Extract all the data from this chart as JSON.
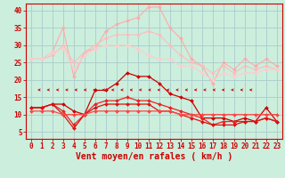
{
  "background_color": "#cceedd",
  "grid_color": "#aacccc",
  "xlabel": "Vent moyen/en rafales ( km/h )",
  "x_ticks": [
    0,
    1,
    2,
    3,
    4,
    5,
    6,
    7,
    8,
    9,
    10,
    11,
    12,
    13,
    14,
    15,
    16,
    17,
    18,
    19,
    20,
    21,
    22,
    23
  ],
  "ylim": [
    3,
    42
  ],
  "yticks": [
    5,
    10,
    15,
    20,
    25,
    30,
    35,
    40
  ],
  "series": [
    {
      "color": "#ffaaaa",
      "marker": "D",
      "markersize": 2,
      "linewidth": 0.8,
      "y": [
        26,
        26,
        28,
        35,
        21,
        28,
        29,
        34,
        36,
        37,
        38,
        41,
        41,
        35,
        32,
        26,
        24,
        19,
        25,
        23,
        26,
        24,
        26,
        24
      ]
    },
    {
      "color": "#ffbbbb",
      "marker": "D",
      "markersize": 2,
      "linewidth": 0.8,
      "y": [
        26,
        26,
        27,
        30,
        25,
        28,
        30,
        32,
        33,
        33,
        33,
        34,
        33,
        30,
        27,
        25,
        24,
        22,
        24,
        22,
        24,
        23,
        24,
        23
      ]
    },
    {
      "color": "#ffcccc",
      "marker": "D",
      "markersize": 2,
      "linewidth": 0.8,
      "y": [
        26,
        26,
        28,
        29,
        23,
        27,
        29,
        30,
        30,
        30,
        29,
        27,
        26,
        26,
        24,
        24,
        22,
        20,
        22,
        21,
        22,
        22,
        23,
        23
      ]
    },
    {
      "color": "#cc0000",
      "marker": "D",
      "markersize": 2,
      "linewidth": 0.9,
      "y": [
        12,
        12,
        13,
        13,
        11,
        10,
        17,
        17,
        19,
        22,
        21,
        21,
        19,
        16,
        15,
        14,
        9,
        9,
        9,
        8,
        9,
        8,
        12,
        8
      ]
    },
    {
      "color": "#ee2222",
      "marker": "D",
      "markersize": 2,
      "linewidth": 0.9,
      "y": [
        12,
        12,
        13,
        11,
        7,
        10,
        13,
        14,
        14,
        15,
        14,
        14,
        13,
        12,
        11,
        10,
        9,
        7,
        8,
        8,
        8,
        8,
        9,
        8
      ]
    },
    {
      "color": "#dd1111",
      "marker": "D",
      "markersize": 2,
      "linewidth": 0.9,
      "y": [
        12,
        12,
        13,
        10,
        6,
        10,
        12,
        13,
        13,
        13,
        13,
        13,
        11,
        11,
        10,
        9,
        8,
        7,
        7,
        7,
        8,
        8,
        9,
        8
      ]
    },
    {
      "color": "#ff4444",
      "marker": "D",
      "markersize": 2,
      "linewidth": 0.9,
      "y": [
        11,
        11,
        11,
        10,
        10,
        10,
        11,
        11,
        11,
        11,
        11,
        11,
        11,
        11,
        10,
        10,
        10,
        10,
        10,
        10,
        10,
        10,
        10,
        10
      ]
    }
  ],
  "arrow_color": "#cc0000",
  "tick_fontsize": 5.5,
  "axis_label_fontsize": 7
}
